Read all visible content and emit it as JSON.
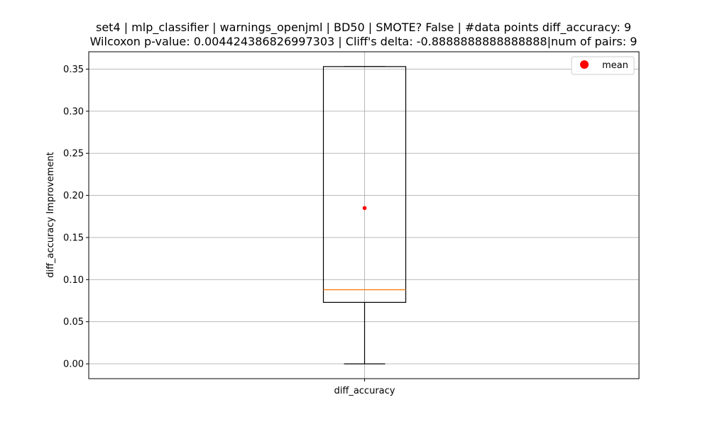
{
  "chart_data": {
    "type": "box",
    "title_line1": "set4 | mlp_classifier | warnings_openjml | BD50 | SMOTE? False | #data points diff_accuracy: 9",
    "title_line2": "Wilcoxon p-value: 0.004424386826997303 | Cliff's delta: -0.8888888888888888|num of pairs: 9",
    "xlabel": "",
    "ylabel": "diff_accuracy Improvement",
    "categories": [
      "diff_accuracy"
    ],
    "box": {
      "whisker_low": 0.0,
      "q1": 0.073,
      "median": 0.088,
      "q3": 0.353,
      "whisker_high": 0.353,
      "mean": 0.185
    },
    "ylim": [
      -0.0176,
      0.3706
    ],
    "yticks": [
      0.0,
      0.05,
      0.1,
      0.15,
      0.2,
      0.25,
      0.3,
      0.35
    ],
    "ytick_labels": [
      "0.00",
      "0.05",
      "0.10",
      "0.15",
      "0.20",
      "0.25",
      "0.30",
      "0.35"
    ],
    "grid": true,
    "legend": {
      "position": "top-right",
      "entries": [
        {
          "label": "mean",
          "color": "#ff0000"
        }
      ]
    },
    "colors": {
      "box": "#000000",
      "median": "#ff7f0e",
      "mean": "#ff0000",
      "grid": "#b0b0b0"
    }
  }
}
